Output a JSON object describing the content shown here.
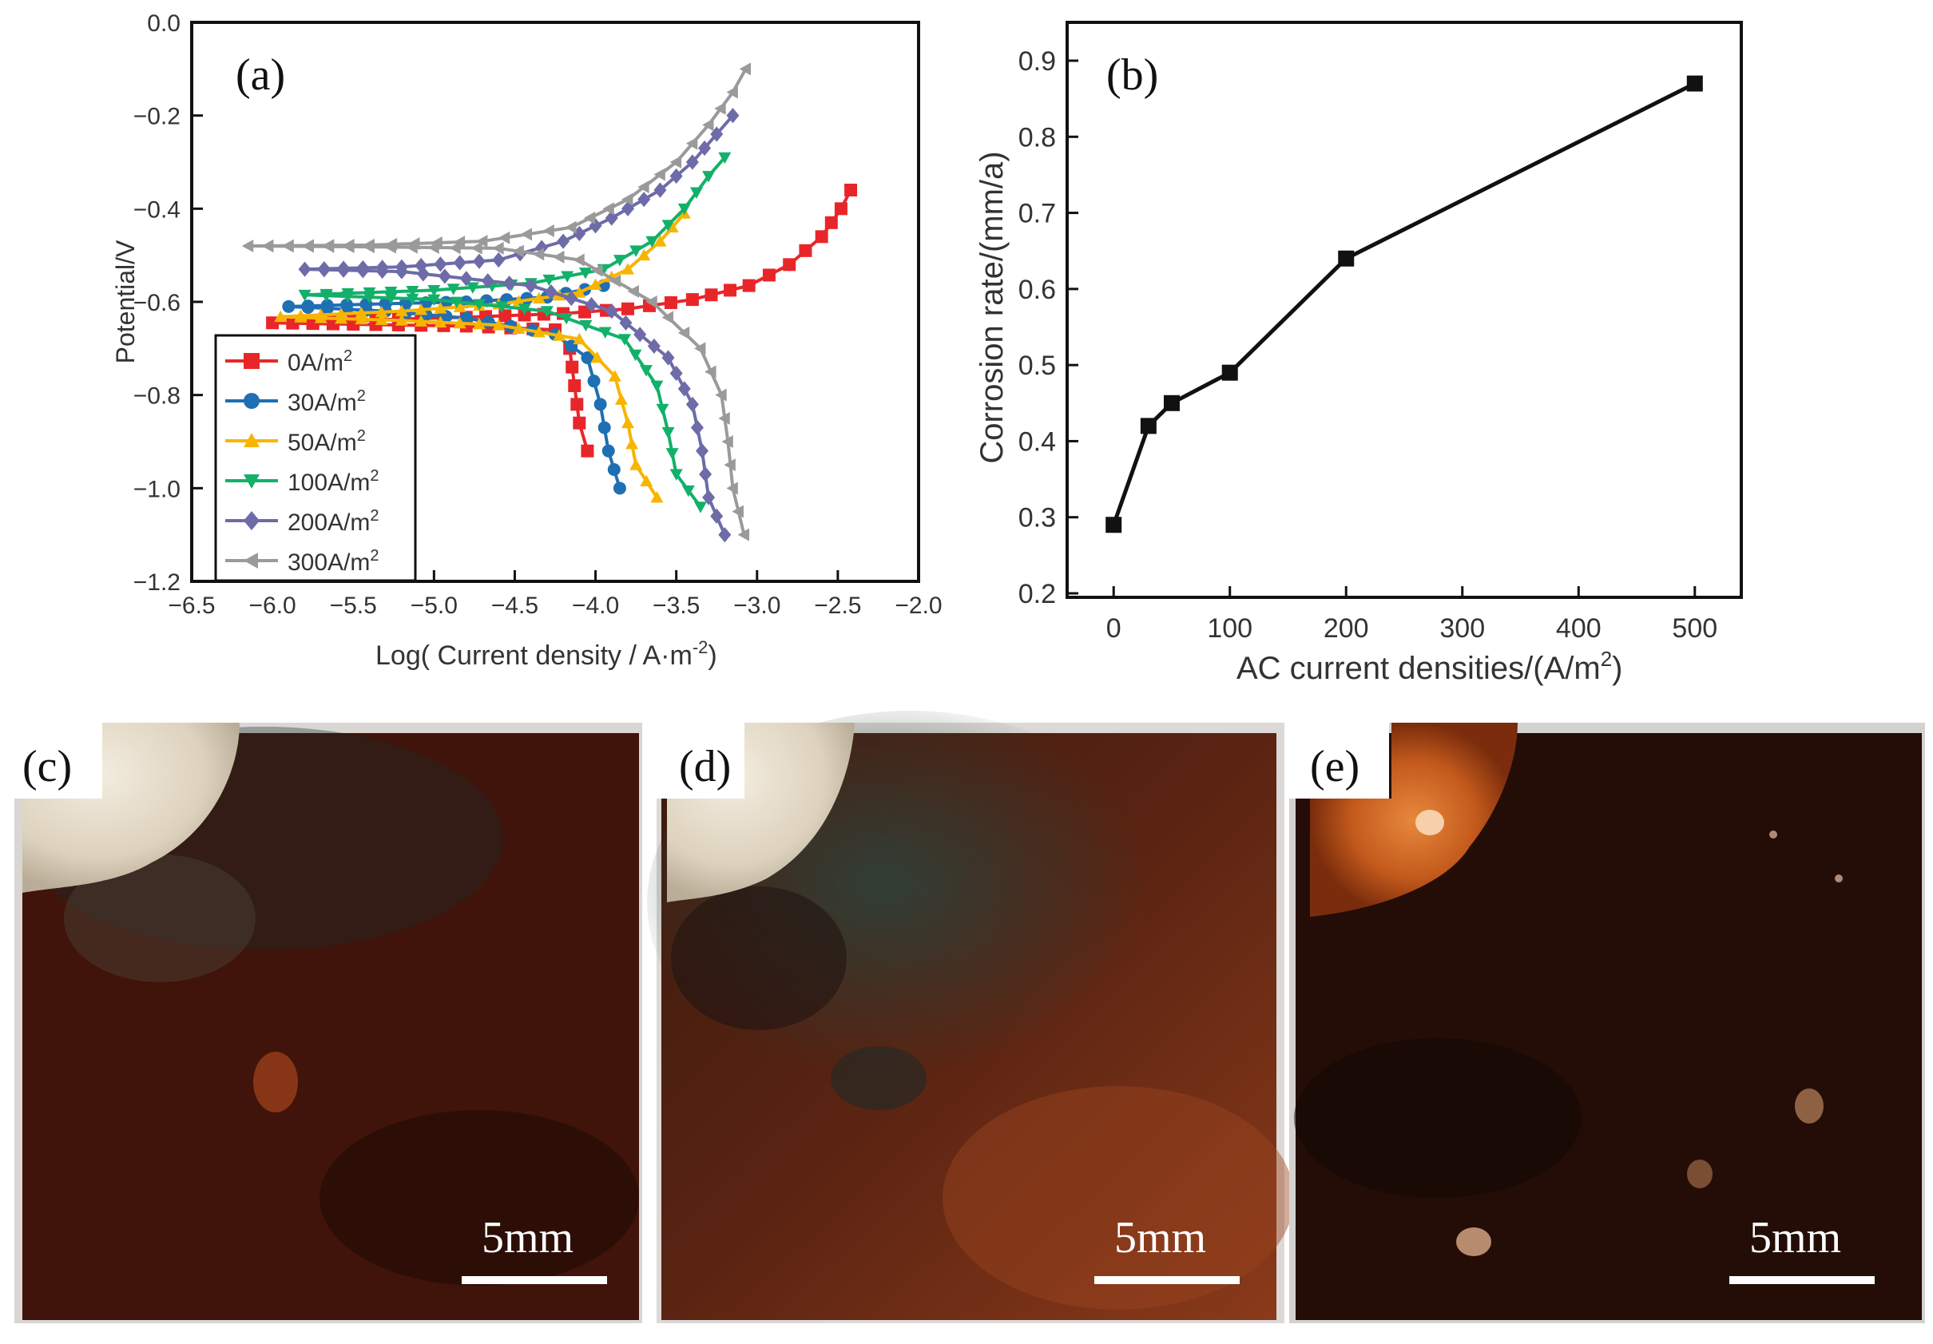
{
  "chart_data": [
    {
      "panel": "(a)",
      "type": "line",
      "xlabel": "Log( Current density / A·m",
      "xlabel_sup": "-2",
      "xlabel_end": ")",
      "ylabel": "Potential/V",
      "xlim": [
        -6.5,
        -2.0
      ],
      "ylim": [
        -1.2,
        0.0
      ],
      "xticks": [
        -6.5,
        -6.0,
        -5.5,
        -5.0,
        -4.5,
        -4.0,
        -3.5,
        -3.0,
        -2.5,
        -2.0
      ],
      "yticks": [
        0.0,
        -0.2,
        -0.4,
        -0.6,
        -0.8,
        -1.0,
        -1.2
      ],
      "grid": false,
      "legend": "bottom-left",
      "series": [
        {
          "name": "0A/m",
          "sup": "2",
          "color": "#e8262a",
          "marker": "square",
          "points": [
            [
              -4.05,
              -0.92
            ],
            [
              -4.1,
              -0.86
            ],
            [
              -4.13,
              -0.78
            ],
            [
              -4.16,
              -0.7
            ],
            [
              -4.25,
              -0.66
            ],
            [
              -4.8,
              -0.652
            ],
            [
              -5.5,
              -0.648
            ],
            [
              -6.0,
              -0.645
            ],
            [
              -5.5,
              -0.64
            ],
            [
              -4.8,
              -0.633
            ],
            [
              -4.2,
              -0.625
            ],
            [
              -3.8,
              -0.615
            ],
            [
              -3.4,
              -0.595
            ],
            [
              -3.05,
              -0.565
            ],
            [
              -2.8,
              -0.52
            ],
            [
              -2.6,
              -0.46
            ],
            [
              -2.48,
              -0.4
            ],
            [
              -2.42,
              -0.36
            ]
          ]
        },
        {
          "name": "30A/m",
          "sup": "2",
          "color": "#1f6fb3",
          "marker": "circle",
          "points": [
            [
              -3.85,
              -1.0
            ],
            [
              -3.92,
              -0.92
            ],
            [
              -3.97,
              -0.82
            ],
            [
              -4.05,
              -0.72
            ],
            [
              -4.25,
              -0.67
            ],
            [
              -4.8,
              -0.635
            ],
            [
              -5.3,
              -0.62
            ],
            [
              -5.9,
              -0.61
            ],
            [
              -5.3,
              -0.604
            ],
            [
              -4.8,
              -0.6
            ],
            [
              -4.3,
              -0.59
            ],
            [
              -3.95,
              -0.565
            ]
          ]
        },
        {
          "name": "50A/m",
          "sup": "2",
          "color": "#f7b500",
          "marker": "triangle-up",
          "points": [
            [
              -3.62,
              -1.02
            ],
            [
              -3.75,
              -0.95
            ],
            [
              -3.8,
              -0.86
            ],
            [
              -3.88,
              -0.76
            ],
            [
              -4.1,
              -0.68
            ],
            [
              -4.6,
              -0.65
            ],
            [
              -5.2,
              -0.64
            ],
            [
              -5.95,
              -0.632
            ],
            [
              -5.2,
              -0.62
            ],
            [
              -4.6,
              -0.605
            ],
            [
              -4.1,
              -0.58
            ],
            [
              -3.8,
              -0.53
            ],
            [
              -3.6,
              -0.47
            ],
            [
              -3.45,
              -0.41
            ]
          ]
        },
        {
          "name": "100A/m",
          "sup": "2",
          "color": "#13b06a",
          "marker": "triangle-down",
          "points": [
            [
              -3.35,
              -1.04
            ],
            [
              -3.5,
              -0.97
            ],
            [
              -3.55,
              -0.88
            ],
            [
              -3.62,
              -0.78
            ],
            [
              -3.82,
              -0.68
            ],
            [
              -4.3,
              -0.62
            ],
            [
              -5.0,
              -0.595
            ],
            [
              -5.8,
              -0.585
            ],
            [
              -5.0,
              -0.575
            ],
            [
              -4.4,
              -0.56
            ],
            [
              -3.95,
              -0.53
            ],
            [
              -3.65,
              -0.47
            ],
            [
              -3.45,
              -0.4
            ],
            [
              -3.3,
              -0.33
            ],
            [
              -3.2,
              -0.29
            ]
          ]
        },
        {
          "name": "200A/m",
          "sup": "2",
          "color": "#6d6ba8",
          "marker": "diamond",
          "points": [
            [
              -3.2,
              -1.1
            ],
            [
              -3.3,
              -1.02
            ],
            [
              -3.34,
              -0.92
            ],
            [
              -3.4,
              -0.82
            ],
            [
              -3.55,
              -0.72
            ],
            [
              -3.9,
              -0.62
            ],
            [
              -4.4,
              -0.565
            ],
            [
              -5.2,
              -0.535
            ],
            [
              -5.8,
              -0.53
            ],
            [
              -5.2,
              -0.525
            ],
            [
              -4.6,
              -0.51
            ],
            [
              -4.2,
              -0.47
            ],
            [
              -3.9,
              -0.42
            ],
            [
              -3.6,
              -0.36
            ],
            [
              -3.4,
              -0.3
            ],
            [
              -3.25,
              -0.24
            ],
            [
              -3.15,
              -0.2
            ]
          ]
        },
        {
          "name": "300A/m",
          "sup": "2",
          "color": "#9a9a9a",
          "marker": "triangle-left",
          "points": [
            [
              -3.08,
              -1.1
            ],
            [
              -3.15,
              -1.0
            ],
            [
              -3.18,
              -0.9
            ],
            [
              -3.22,
              -0.8
            ],
            [
              -3.35,
              -0.7
            ],
            [
              -3.65,
              -0.6
            ],
            [
              -4.1,
              -0.51
            ],
            [
              -4.6,
              -0.485
            ],
            [
              -5.4,
              -0.482
            ],
            [
              -6.15,
              -0.48
            ],
            [
              -5.4,
              -0.478
            ],
            [
              -4.7,
              -0.47
            ],
            [
              -4.15,
              -0.44
            ],
            [
              -3.8,
              -0.38
            ],
            [
              -3.5,
              -0.3
            ],
            [
              -3.3,
              -0.22
            ],
            [
              -3.15,
              -0.15
            ],
            [
              -3.07,
              -0.1
            ]
          ]
        }
      ]
    },
    {
      "panel": "(b)",
      "type": "line",
      "xlabel": "AC current densities/(A/m",
      "xlabel_sup": "2",
      "xlabel_end": ")",
      "ylabel": "Corrosion rate/(mm/a)",
      "xlim": [
        -40,
        540
      ],
      "ylim": [
        0.2,
        0.9
      ],
      "xticks": [
        0,
        100,
        200,
        300,
        400,
        500
      ],
      "yticks": [
        0.2,
        0.3,
        0.4,
        0.5,
        0.6,
        0.7,
        0.8,
        0.9
      ],
      "grid": false,
      "series": [
        {
          "color": "#111111",
          "marker": "square",
          "x": [
            0,
            30,
            50,
            100,
            200,
            500
          ],
          "y": [
            0.29,
            0.42,
            0.45,
            0.49,
            0.64,
            0.87
          ]
        }
      ]
    }
  ],
  "photos": [
    {
      "label": "(c)",
      "scale_bar": "5mm"
    },
    {
      "label": "(d)",
      "scale_bar": "5mm"
    },
    {
      "label": "(e)",
      "scale_bar": "5mm"
    }
  ],
  "colors": {
    "photo_dark": "#2a0d07",
    "rust": "#6b2a12",
    "coating": "#e9dfcd",
    "orange_blob": "#c35a1c"
  }
}
